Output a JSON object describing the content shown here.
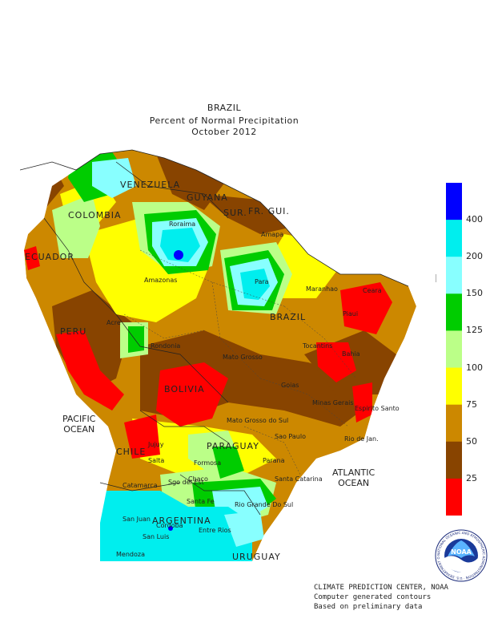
{
  "titles": {
    "line1": "BRAZIL",
    "line2": "Percent of Normal Precipitation",
    "line3": "October 2012"
  },
  "labels": {
    "venezuela": "VENEZUELA",
    "guyana": "GUYANA",
    "sur": "SUR.",
    "frgui": "FR. GUI.",
    "colombia": "COLOMBIA",
    "ecuador": "ECUADOR",
    "peru": "PERU",
    "brazil": "BRAZIL",
    "bolivia": "BOLIVIA",
    "chile": "CHILE",
    "paraguay": "PARAGUAY",
    "argentina": "ARGENTINA",
    "uruguay": "URUGUAY",
    "roraima": "Roraima",
    "amapa": "Amapa",
    "amazonas": "Amazonas",
    "para": "Para",
    "maranhao": "Maranhao",
    "ceara": "Ceara",
    "piaui": "Piaui",
    "acre": "Acre",
    "rondonia": "Rondonia",
    "tocantins": "Tocantins",
    "bahia": "Bahia",
    "matogrosso": "Mato Grosso",
    "goias": "Goias",
    "minasgerais": "Minas Gerais",
    "espiritosanto": "Espirito Santo",
    "matogrossodosul": "Mato Grosso do Sul",
    "saopaulo": "Sao Paulo",
    "riodejaneiro": "Rio de Jan.",
    "parana": "Parana",
    "santacatarina": "Santa Catarina",
    "riograndedosul": "Rio Grande Do Sul",
    "jujuy": "Jujuy",
    "salta": "Salta",
    "formosa": "Formosa",
    "chaco": "Chaco",
    "catamarca": "Catamarca",
    "santiago": "Sgo del Est",
    "santafe": "Santa Fe",
    "sanjuan": "San Juan",
    "cordoba": "Cordoba",
    "sanluis": "San Luis",
    "entrerios": "Entre Rios",
    "mendoza": "Mendoza"
  },
  "oceans": {
    "pacific_line1": "PACIFIC",
    "pacific_line2": "OCEAN",
    "atlantic_line1": "ATLANTIC",
    "atlantic_line2": "OCEAN"
  },
  "legend": {
    "colors": [
      "#0000ff",
      "#00eeee",
      "#88ffff",
      "#00cc00",
      "#bbff88",
      "#ffff00",
      "#cc8800",
      "#884400",
      "#ff0000"
    ],
    "ticks": [
      "400",
      "200",
      "150",
      "125",
      "100",
      "75",
      "50",
      "25"
    ]
  },
  "credits": {
    "line1": "CLIMATE PREDICTION CENTER, NOAA",
    "line2": "Computer generated contours",
    "line3": "Based on preliminary data"
  },
  "logo": {
    "name": "NOAA",
    "ring_text": "NATIONAL OCEANIC AND ATMOSPHERIC ADMINISTRATION · U.S. DEPARTMENT OF COMMERCE"
  }
}
